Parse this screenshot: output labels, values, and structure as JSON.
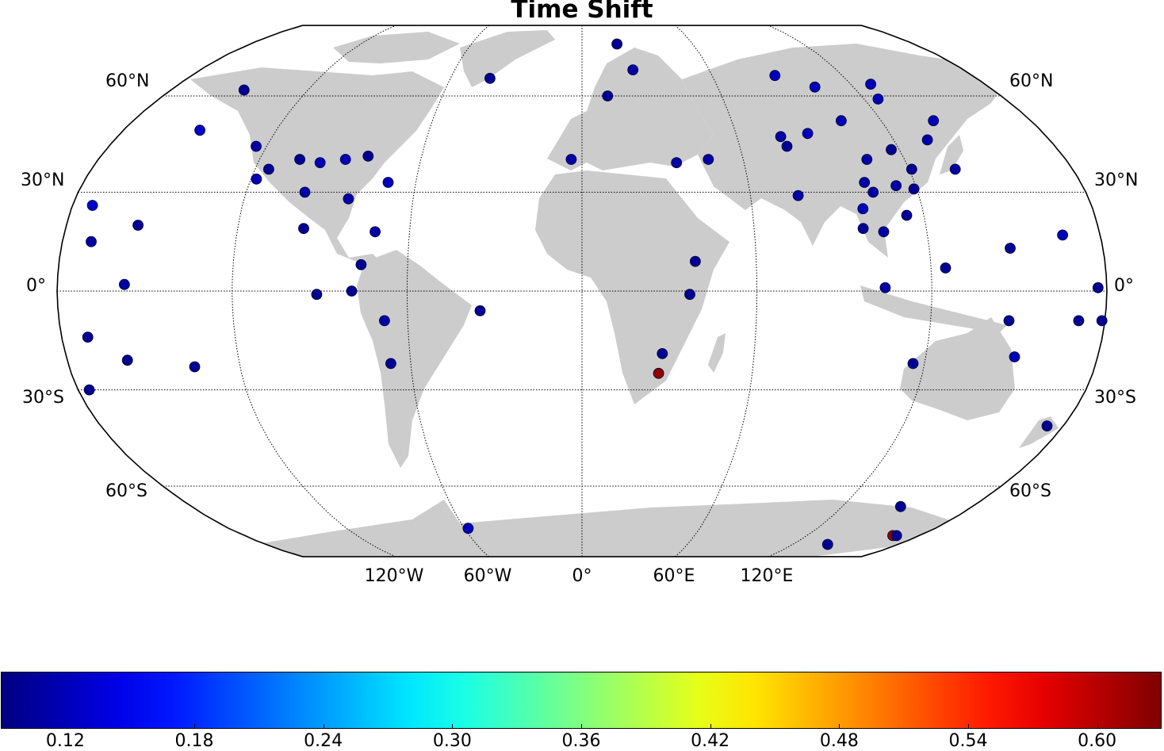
{
  "title": "Time Shift",
  "lat_labels": [
    "60°N",
    "30°N",
    "0°",
    "30°S",
    "60°S"
  ],
  "lon_labels": [
    "120°W",
    "60°W",
    "0°",
    "60°E",
    "120°E"
  ],
  "colorbar": {
    "colormap": "jet",
    "min": 0.09,
    "max": 0.63,
    "ticks": [
      "0.12",
      "0.18",
      "0.24",
      "0.30",
      "0.36",
      "0.42",
      "0.48",
      "0.54",
      "0.60"
    ],
    "tick_values": [
      0.12,
      0.18,
      0.24,
      0.3,
      0.36,
      0.42,
      0.48,
      0.54,
      0.6
    ]
  },
  "colors": {
    "land": "#cccccc",
    "water": "#ffffff",
    "grid": "#000000"
  },
  "chart_data": {
    "type": "scatter",
    "title": "Time Shift",
    "projection": "Robinson",
    "color_scale": "jet",
    "points": [
      {
        "lon": -173,
        "lat": 26,
        "value": 0.13
      },
      {
        "lon": -170,
        "lat": 15,
        "value": 0.11
      },
      {
        "lon": -150,
        "lat": 49,
        "value": 0.13
      },
      {
        "lon": -155,
        "lat": 20,
        "value": 0.1
      },
      {
        "lon": -157,
        "lat": 2,
        "value": 0.11
      },
      {
        "lon": -171,
        "lat": -14,
        "value": 0.1
      },
      {
        "lon": -159,
        "lat": -21,
        "value": 0.1
      },
      {
        "lon": -176,
        "lat": -30,
        "value": 0.1
      },
      {
        "lon": -136,
        "lat": -23,
        "value": 0.1
      },
      {
        "lon": -148,
        "lat": 62,
        "value": 0.1
      },
      {
        "lon": -124,
        "lat": 44,
        "value": 0.11
      },
      {
        "lon": -118,
        "lat": 34,
        "value": 0.12
      },
      {
        "lon": -115,
        "lat": 37,
        "value": 0.1
      },
      {
        "lon": -105,
        "lat": 40,
        "value": 0.1
      },
      {
        "lon": -99,
        "lat": 30,
        "value": 0.11
      },
      {
        "lon": -97,
        "lat": 39,
        "value": 0.12
      },
      {
        "lon": -88,
        "lat": 40,
        "value": 0.12
      },
      {
        "lon": -80,
        "lat": 41,
        "value": 0.1
      },
      {
        "lon": -83,
        "lat": 28,
        "value": 0.11
      },
      {
        "lon": -97,
        "lat": 19,
        "value": 0.1
      },
      {
        "lon": -70,
        "lat": 33,
        "value": 0.12
      },
      {
        "lon": -72,
        "lat": 18,
        "value": 0.11
      },
      {
        "lon": -76,
        "lat": 8,
        "value": 0.1
      },
      {
        "lon": -91,
        "lat": -1,
        "value": 0.1
      },
      {
        "lon": -79,
        "lat": 0,
        "value": 0.1
      },
      {
        "lon": -68,
        "lat": -9,
        "value": 0.11
      },
      {
        "lon": -67,
        "lat": -22,
        "value": 0.1
      },
      {
        "lon": -35,
        "lat": -6,
        "value": 0.1
      },
      {
        "lon": -42,
        "lat": 66,
        "value": 0.1
      },
      {
        "lon": -58,
        "lat": -75,
        "value": 0.12
      },
      {
        "lon": -4,
        "lat": 40,
        "value": 0.11
      },
      {
        "lon": 19,
        "lat": 79,
        "value": 0.1
      },
      {
        "lon": 11,
        "lat": 60,
        "value": 0.1
      },
      {
        "lon": 24,
        "lat": 69,
        "value": 0.11
      },
      {
        "lon": 35,
        "lat": 39,
        "value": 0.11
      },
      {
        "lon": 47,
        "lat": 40,
        "value": 0.11
      },
      {
        "lon": 39,
        "lat": 9,
        "value": 0.1
      },
      {
        "lon": 37,
        "lat": -1,
        "value": 0.1
      },
      {
        "lon": 28,
        "lat": -19,
        "value": 0.1
      },
      {
        "lon": 27,
        "lat": -25,
        "value": 0.62
      },
      {
        "lon": 77,
        "lat": 47,
        "value": 0.11
      },
      {
        "lon": 78,
        "lat": 44,
        "value": 0.1
      },
      {
        "lon": 77,
        "lat": 29,
        "value": 0.11
      },
      {
        "lon": 89,
        "lat": 67,
        "value": 0.12
      },
      {
        "lon": 88,
        "lat": 48,
        "value": 0.12
      },
      {
        "lon": 103,
        "lat": 63,
        "value": 0.12
      },
      {
        "lon": 104,
        "lat": 52,
        "value": 0.12
      },
      {
        "lon": 106,
        "lat": 40,
        "value": 0.11
      },
      {
        "lon": 102,
        "lat": 33,
        "value": 0.11
      },
      {
        "lon": 104,
        "lat": 30,
        "value": 0.11
      },
      {
        "lon": 99,
        "lat": 25,
        "value": 0.12
      },
      {
        "lon": 98,
        "lat": 19,
        "value": 0.1
      },
      {
        "lon": 105,
        "lat": 18,
        "value": 0.11
      },
      {
        "lon": 117,
        "lat": 43,
        "value": 0.1
      },
      {
        "lon": 121,
        "lat": 37,
        "value": 0.1
      },
      {
        "lon": 119,
        "lat": 31,
        "value": 0.1
      },
      {
        "lon": 113,
        "lat": 32,
        "value": 0.11
      },
      {
        "lon": 114,
        "lat": 23,
        "value": 0.1
      },
      {
        "lon": 129,
        "lat": 64,
        "value": 0.12
      },
      {
        "lon": 126,
        "lat": 59,
        "value": 0.12
      },
      {
        "lon": 133,
        "lat": 46,
        "value": 0.11
      },
      {
        "lon": 141,
        "lat": 52,
        "value": 0.12
      },
      {
        "lon": 137,
        "lat": 37,
        "value": 0.11
      },
      {
        "lon": 125,
        "lat": 7,
        "value": 0.1
      },
      {
        "lon": 104,
        "lat": 1,
        "value": 0.11
      },
      {
        "lon": 116,
        "lat": -22,
        "value": 0.1
      },
      {
        "lon": 147,
        "lat": -9,
        "value": 0.1
      },
      {
        "lon": 151,
        "lat": -20,
        "value": 0.12
      },
      {
        "lon": 148,
        "lat": 13,
        "value": 0.1
      },
      {
        "lon": 167,
        "lat": 17,
        "value": 0.12
      },
      {
        "lon": 171,
        "lat": -9,
        "value": 0.1
      },
      {
        "lon": 174,
        "lat": -41,
        "value": 0.1
      },
      {
        "lon": 177,
        "lat": 1,
        "value": 0.1
      },
      {
        "lon": 179,
        "lat": -9,
        "value": 0.1
      },
      {
        "lon": 147,
        "lat": -67,
        "value": 0.1
      },
      {
        "lon": 166,
        "lat": -78,
        "value": 0.62
      },
      {
        "lon": 168,
        "lat": -78,
        "value": 0.1
      },
      {
        "lon": 140,
        "lat": -82,
        "value": 0.1
      }
    ]
  }
}
